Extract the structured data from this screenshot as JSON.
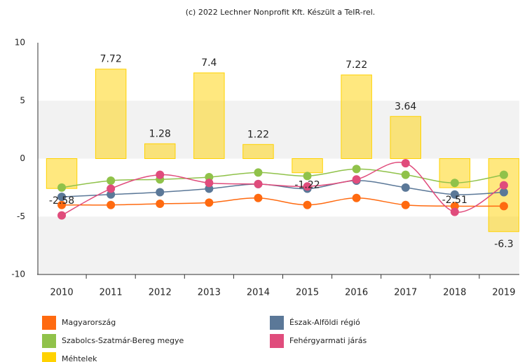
{
  "chart_data": {
    "type": "bar",
    "credits": "(c) 2022 Lechner Nonprofit Kft. Készült a TeIR-rel.",
    "categories": [
      "2010",
      "2011",
      "2012",
      "2013",
      "2014",
      "2015",
      "2016",
      "2017",
      "2018",
      "2019"
    ],
    "ylim": [
      -10,
      10
    ],
    "yticks": [
      10,
      5,
      0,
      -5,
      -10
    ],
    "series": [
      {
        "name": "Magyarország",
        "type": "line",
        "color": "#ff6a10",
        "values": [
          -4.0,
          -4.0,
          -3.9,
          -3.8,
          -3.4,
          -4.0,
          -3.4,
          -4.0,
          -4.1,
          -4.1
        ]
      },
      {
        "name": "Észak-Alföldi régió",
        "type": "line",
        "color": "#5b7898",
        "values": [
          -3.3,
          -3.1,
          -2.9,
          -2.6,
          -2.2,
          -2.6,
          -1.9,
          -2.5,
          -3.1,
          -2.9
        ]
      },
      {
        "name": "Szabolcs-Szatmár-Bereg megye",
        "type": "line",
        "color": "#90c24a",
        "values": [
          -2.5,
          -1.9,
          -1.8,
          -1.6,
          -1.2,
          -1.5,
          -0.9,
          -1.4,
          -2.1,
          -1.4
        ]
      },
      {
        "name": "Fehérgyarmati járás",
        "type": "line",
        "color": "#e04c7c",
        "values": [
          -4.9,
          -2.6,
          -1.4,
          -2.1,
          -2.2,
          -2.4,
          -1.8,
          -0.4,
          -4.6,
          -2.3
        ]
      },
      {
        "name": "Méhtelek",
        "type": "bar",
        "color": "#ffd200",
        "values": [
          -2.58,
          7.72,
          1.28,
          7.4,
          1.22,
          -1.22,
          7.22,
          3.64,
          -2.51,
          -6.3
        ]
      }
    ]
  }
}
